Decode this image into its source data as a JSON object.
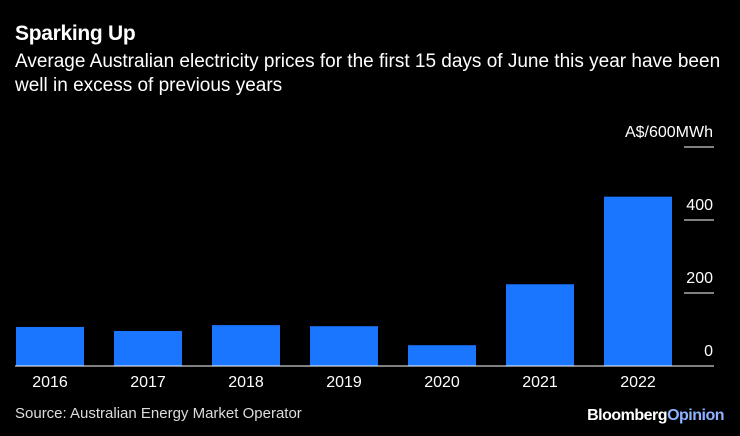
{
  "chart_data": {
    "type": "bar",
    "title": "Sparking Up",
    "subtitle": "Average Australian electricity prices for the first 15 days of June this year have been well in excess of previous years",
    "categories": [
      "2016",
      "2017",
      "2018",
      "2019",
      "2020",
      "2021",
      "2022"
    ],
    "values": [
      107,
      96,
      112,
      109,
      57,
      224,
      464
    ],
    "color": "#1a75ff",
    "ylim": [
      0,
      600
    ],
    "yticks": [
      0,
      200,
      400,
      {
        "value": 600,
        "label": "A$/600MWh"
      }
    ],
    "source": "Source: Australian Energy Market Operator",
    "brand": "Bloomberg",
    "brand_suffix": "Opinion"
  }
}
